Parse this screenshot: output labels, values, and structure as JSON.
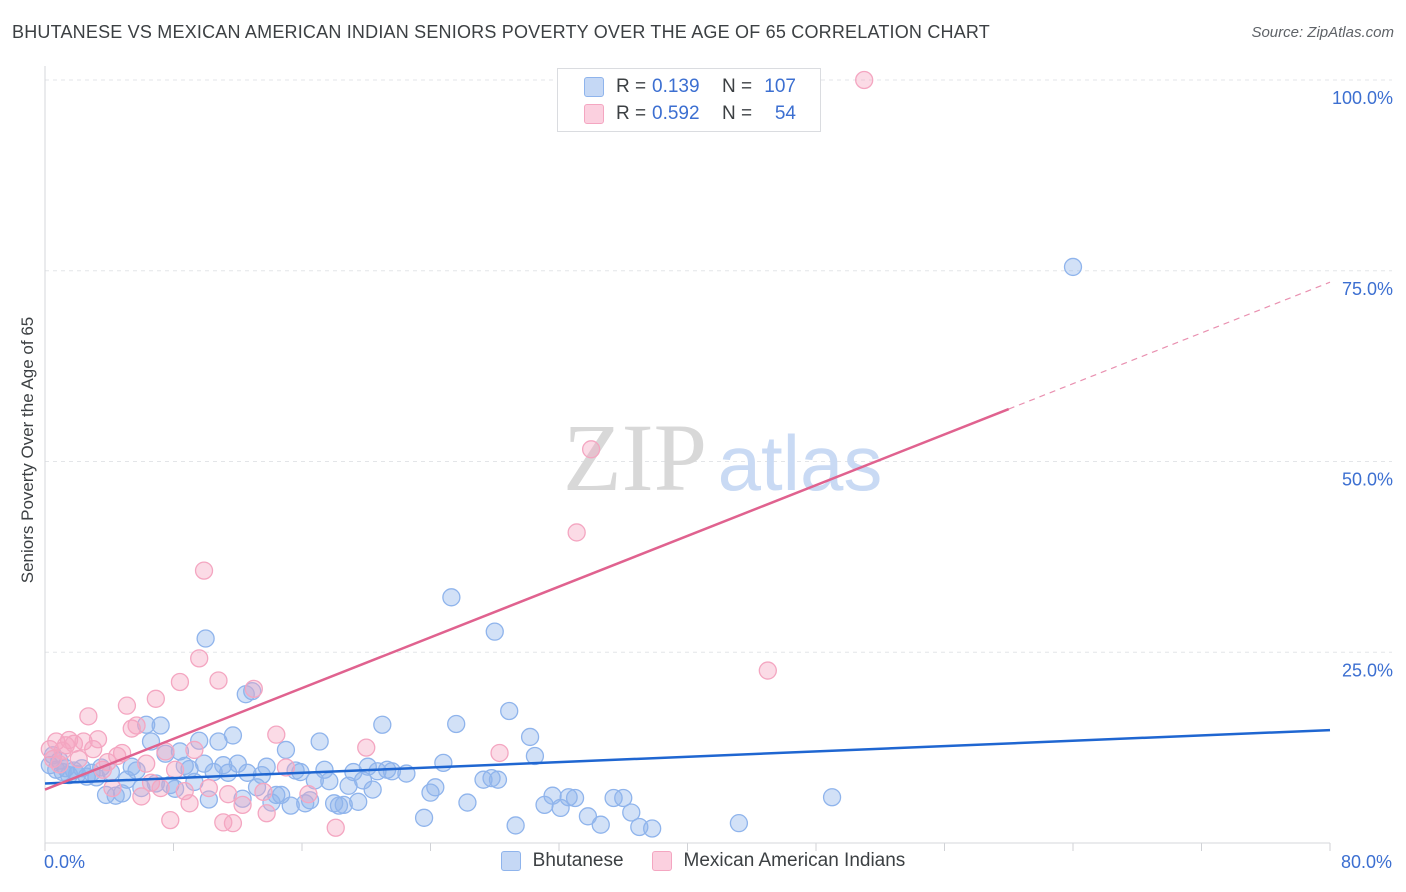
{
  "title": "BHUTANESE VS MEXICAN AMERICAN INDIAN SENIORS POVERTY OVER THE AGE OF 65 CORRELATION CHART",
  "source": "Source: ZipAtlas.com",
  "watermark": {
    "zip": "ZIP",
    "atlas": "atlas"
  },
  "legend": {
    "r_label": "R =",
    "n_label": "N =",
    "series": [
      {
        "r": "0.139",
        "n": "107"
      },
      {
        "r": "0.592",
        "n": "54"
      }
    ]
  },
  "chart_data": {
    "type": "scatter",
    "title": "BHUTANESE VS MEXICAN AMERICAN INDIAN SENIORS POVERTY OVER THE AGE OF 65 CORRELATION CHART",
    "xlabel": "",
    "ylabel": "Seniors Poverty Over the Age of 65",
    "xlim": [
      0,
      80
    ],
    "ylim": [
      0,
      100
    ],
    "x_tick_labels": [
      "0.0%",
      "80.0%"
    ],
    "y_ticks": [
      25,
      50,
      75,
      100
    ],
    "y_tick_labels": [
      "25.0%",
      "50.0%",
      "75.0%",
      "100.0%"
    ],
    "grid": true,
    "legend_position": "top-center",
    "series": [
      {
        "name": "Bhutanese",
        "color": "#8fb4ec",
        "line_color": "#1f66d1",
        "r": 0.139,
        "n": 107,
        "trend": {
          "x": [
            0,
            80
          ],
          "y": [
            7.8,
            14.8
          ]
        },
        "points": [
          [
            0.3,
            10.2
          ],
          [
            0.5,
            11.5
          ],
          [
            0.7,
            9.6
          ],
          [
            0.9,
            10.8
          ],
          [
            1.1,
            9.3
          ],
          [
            1.3,
            9.8
          ],
          [
            1.5,
            8.9
          ],
          [
            1.8,
            9.5
          ],
          [
            2.0,
            9.0
          ],
          [
            2.3,
            9.8
          ],
          [
            2.6,
            8.7
          ],
          [
            2.9,
            9.2
          ],
          [
            3.2,
            8.6
          ],
          [
            3.5,
            9.9
          ],
          [
            3.8,
            6.3
          ],
          [
            4.1,
            9.3
          ],
          [
            4.4,
            6.2
          ],
          [
            4.8,
            6.5
          ],
          [
            5.1,
            8.3
          ],
          [
            5.4,
            10.0
          ],
          [
            5.7,
            9.5
          ],
          [
            6.0,
            7.2
          ],
          [
            6.3,
            15.5
          ],
          [
            6.6,
            13.3
          ],
          [
            6.9,
            7.8
          ],
          [
            7.2,
            15.4
          ],
          [
            7.5,
            11.7
          ],
          [
            7.8,
            7.6
          ],
          [
            8.1,
            7.1
          ],
          [
            8.4,
            12.0
          ],
          [
            8.7,
            10.1
          ],
          [
            9.0,
            9.7
          ],
          [
            9.3,
            8.0
          ],
          [
            9.6,
            13.4
          ],
          [
            9.9,
            10.4
          ],
          [
            10.2,
            5.7
          ],
          [
            10.5,
            9.3
          ],
          [
            10.8,
            13.3
          ],
          [
            11.1,
            10.2
          ],
          [
            11.4,
            9.2
          ],
          [
            11.7,
            14.1
          ],
          [
            12.0,
            10.4
          ],
          [
            12.3,
            5.8
          ],
          [
            12.6,
            9.2
          ],
          [
            12.9,
            19.9
          ],
          [
            13.2,
            7.3
          ],
          [
            13.5,
            8.9
          ],
          [
            13.8,
            10.0
          ],
          [
            14.1,
            5.3
          ],
          [
            14.4,
            6.3
          ],
          [
            14.7,
            6.3
          ],
          [
            15.0,
            12.2
          ],
          [
            15.3,
            4.9
          ],
          [
            15.6,
            9.5
          ],
          [
            15.9,
            9.3
          ],
          [
            16.2,
            5.2
          ],
          [
            16.5,
            5.6
          ],
          [
            16.8,
            8.2
          ],
          [
            17.1,
            13.3
          ],
          [
            17.4,
            9.6
          ],
          [
            17.7,
            8.1
          ],
          [
            18.0,
            5.2
          ],
          [
            18.3,
            4.9
          ],
          [
            18.6,
            5.0
          ],
          [
            18.9,
            7.5
          ],
          [
            19.2,
            9.3
          ],
          [
            19.5,
            5.4
          ],
          [
            19.8,
            8.2
          ],
          [
            20.1,
            10.0
          ],
          [
            20.4,
            7.0
          ],
          [
            20.7,
            9.4
          ],
          [
            21.0,
            15.5
          ],
          [
            21.3,
            9.6
          ],
          [
            21.6,
            9.4
          ],
          [
            22.5,
            9.1
          ],
          [
            23.6,
            3.3
          ],
          [
            24.0,
            6.6
          ],
          [
            24.3,
            7.3
          ],
          [
            24.8,
            10.5
          ],
          [
            25.6,
            15.6
          ],
          [
            26.3,
            5.3
          ],
          [
            27.3,
            8.3
          ],
          [
            27.8,
            8.5
          ],
          [
            28.2,
            8.3
          ],
          [
            28.9,
            17.3
          ],
          [
            29.3,
            2.3
          ],
          [
            30.2,
            13.9
          ],
          [
            30.5,
            11.4
          ],
          [
            31.1,
            5.0
          ],
          [
            31.6,
            6.2
          ],
          [
            32.1,
            4.6
          ],
          [
            32.6,
            6.0
          ],
          [
            33.0,
            5.9
          ],
          [
            33.8,
            3.5
          ],
          [
            34.6,
            2.4
          ],
          [
            35.4,
            5.9
          ],
          [
            36.0,
            5.9
          ],
          [
            36.5,
            4.0
          ],
          [
            37.0,
            2.1
          ],
          [
            37.8,
            1.9
          ],
          [
            28.0,
            27.7
          ],
          [
            25.3,
            32.2
          ],
          [
            10.0,
            26.8
          ],
          [
            64.0,
            75.5
          ],
          [
            43.2,
            2.6
          ],
          [
            49.0,
            6.0
          ],
          [
            12.5,
            19.5
          ]
        ]
      },
      {
        "name": "Mexican American Indians",
        "color": "#f4a6c1",
        "line_color": "#e0628f",
        "r": 0.592,
        "n": 54,
        "trend": {
          "x": [
            0,
            80
          ],
          "y": [
            7.0,
            73.5
          ]
        },
        "trend_solid_until_x": 60,
        "points": [
          [
            0.3,
            12.3
          ],
          [
            0.5,
            11.0
          ],
          [
            0.7,
            13.3
          ],
          [
            0.9,
            10.3
          ],
          [
            1.1,
            12.1
          ],
          [
            1.3,
            12.8
          ],
          [
            1.5,
            13.5
          ],
          [
            1.8,
            13.0
          ],
          [
            2.1,
            11.0
          ],
          [
            2.4,
            13.3
          ],
          [
            2.7,
            16.6
          ],
          [
            3.0,
            12.3
          ],
          [
            3.3,
            13.6
          ],
          [
            3.6,
            9.6
          ],
          [
            3.9,
            10.6
          ],
          [
            4.2,
            7.2
          ],
          [
            4.5,
            11.4
          ],
          [
            4.8,
            11.8
          ],
          [
            5.1,
            18.0
          ],
          [
            5.4,
            15.0
          ],
          [
            5.7,
            15.4
          ],
          [
            6.0,
            6.1
          ],
          [
            6.3,
            10.4
          ],
          [
            6.6,
            7.9
          ],
          [
            6.9,
            18.9
          ],
          [
            7.2,
            7.2
          ],
          [
            7.5,
            12.0
          ],
          [
            7.8,
            3.0
          ],
          [
            8.1,
            9.6
          ],
          [
            8.4,
            21.1
          ],
          [
            8.7,
            6.8
          ],
          [
            9.0,
            5.2
          ],
          [
            9.3,
            12.2
          ],
          [
            9.6,
            24.2
          ],
          [
            9.9,
            35.7
          ],
          [
            10.2,
            7.2
          ],
          [
            10.8,
            21.3
          ],
          [
            11.1,
            2.7
          ],
          [
            11.4,
            6.4
          ],
          [
            11.7,
            2.6
          ],
          [
            12.3,
            5.0
          ],
          [
            13.0,
            20.2
          ],
          [
            13.6,
            6.7
          ],
          [
            14.4,
            14.2
          ],
          [
            15.0,
            9.9
          ],
          [
            18.1,
            2.0
          ],
          [
            20.0,
            12.5
          ],
          [
            28.3,
            11.8
          ],
          [
            34.0,
            51.6
          ],
          [
            33.1,
            40.7
          ],
          [
            45.0,
            22.6
          ],
          [
            51.0,
            100.0
          ],
          [
            13.8,
            3.9
          ],
          [
            16.4,
            6.4
          ]
        ]
      }
    ]
  }
}
